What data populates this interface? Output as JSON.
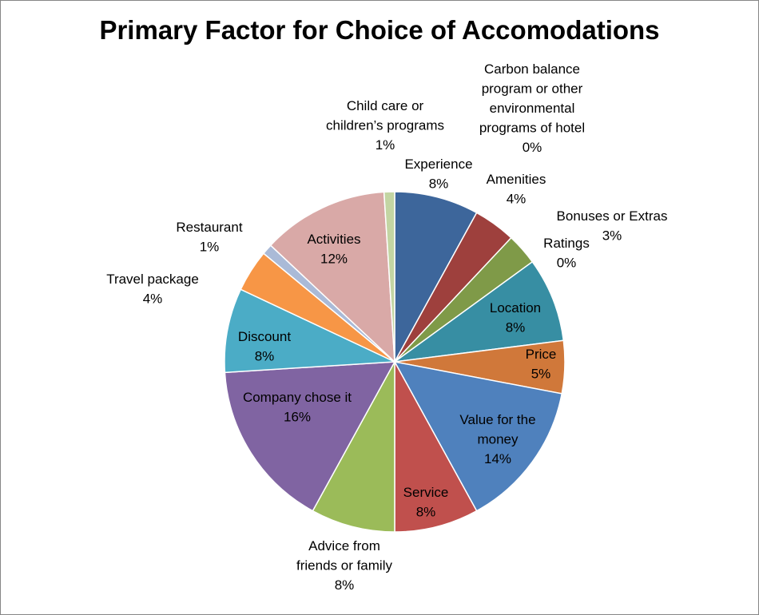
{
  "chart_data": {
    "type": "pie",
    "title": "Primary Factor for Choice of Accomodations",
    "slices": [
      {
        "name": "Experience",
        "value": 8,
        "label": "8%",
        "color": "#3D669B"
      },
      {
        "name": "Amenities",
        "value": 4,
        "label": "4%",
        "color": "#9E403D"
      },
      {
        "name": "Bonuses or Extras",
        "value": 3,
        "label": "3%",
        "color": "#7F9A48"
      },
      {
        "name": "Ratings",
        "value": 0,
        "label": "0%",
        "color": "#69518A"
      },
      {
        "name": "Location",
        "value": 8,
        "label": "8%",
        "color": "#378EA3"
      },
      {
        "name": "Price",
        "value": 5,
        "label": "5%",
        "color": "#D0783A"
      },
      {
        "name": "Value for the money",
        "value": 14,
        "label": "14%",
        "color": "#4F81BD"
      },
      {
        "name": "Service",
        "value": 8,
        "label": "8%",
        "color": "#C0504D"
      },
      {
        "name": "Advice from friends or family",
        "value": 8,
        "label": "8%",
        "color": "#9BBB59"
      },
      {
        "name": "Company chose it",
        "value": 16,
        "label": "16%",
        "color": "#8064A2"
      },
      {
        "name": "Discount",
        "value": 8,
        "label": "8%",
        "color": "#4BACC6"
      },
      {
        "name": "Travel package",
        "value": 4,
        "label": "4%",
        "color": "#F79646"
      },
      {
        "name": "Restaurant",
        "value": 1,
        "label": "1%",
        "color": "#AABAD7"
      },
      {
        "name": "Activities",
        "value": 12,
        "label": "12%",
        "color": "#D9A9A7"
      },
      {
        "name": "Child care or children’s programs",
        "value": 1,
        "label": "1%",
        "color": "#C3D5A3"
      },
      {
        "name": "Carbon balance program or other environmental programs of hotel",
        "value": 0,
        "label": "0%",
        "color": "#B3A2C7"
      }
    ]
  }
}
